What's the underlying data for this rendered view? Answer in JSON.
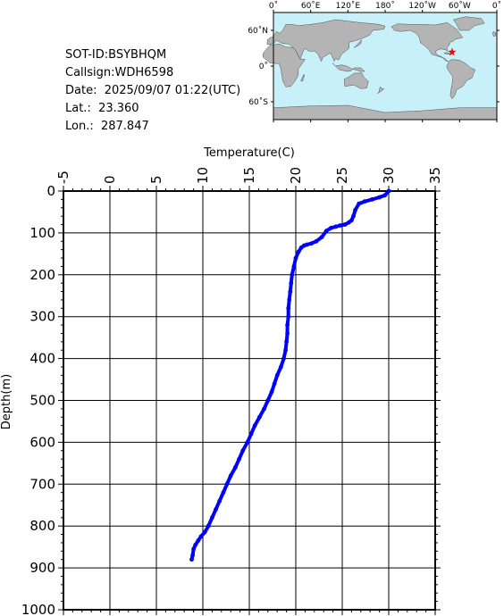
{
  "info": {
    "sot_id": "SOT-ID:BSYBHQM",
    "callsign": "Callsign:WDH6598",
    "date": "Date:  2025/09/07 01:22(UTC)",
    "lat": "Lat.:  23.360",
    "lon": "Lon.:  287.847"
  },
  "map": {
    "lon_labels": [
      "0˚",
      "60˚E",
      "120˚E",
      "180˚",
      "120˚W",
      "60˚W",
      "0˚"
    ],
    "lat_labels": [
      "60˚N",
      "0˚",
      "60˚S"
    ],
    "ocean_color": "#c8f0f8",
    "land_color": "#b4b4b4",
    "marker_color": "#ff0000",
    "marker_lat": 23.36,
    "marker_lon": 287.847
  },
  "chart_data": {
    "type": "line",
    "title": "",
    "xlabel": "Temperature(C)",
    "ylabel": "Depth(m)",
    "xlim": [
      -5,
      35
    ],
    "ylim": [
      0,
      1000
    ],
    "y_inverted": true,
    "x_axis_position": "top",
    "x_ticks": [
      -5,
      0,
      5,
      10,
      15,
      20,
      25,
      30,
      35
    ],
    "y_ticks": [
      0,
      100,
      200,
      300,
      400,
      500,
      600,
      700,
      800,
      900,
      1000
    ],
    "grid": true,
    "series": [
      {
        "color": "#0000ff",
        "x": [
          30.0,
          29.6,
          29.0,
          28.2,
          27.4,
          26.8,
          26.4,
          26.2,
          26.0,
          25.7,
          25.3,
          24.8,
          24.3,
          23.8,
          23.3,
          22.8,
          22.2,
          21.7,
          21.2,
          20.9,
          20.6,
          20.3,
          20.0,
          19.8,
          19.6,
          19.5,
          19.4,
          19.3,
          19.2,
          19.2,
          19.1,
          19.1,
          19.0,
          18.9,
          18.7,
          18.4,
          18.0,
          17.7,
          17.4,
          17.0,
          16.6,
          16.1,
          15.6,
          15.2,
          14.8,
          14.3,
          13.9,
          13.5,
          13.0,
          12.6,
          12.2,
          11.8,
          11.4,
          11.0,
          10.6,
          10.2,
          9.8,
          9.5,
          9.2,
          9.0,
          8.9,
          8.8
        ],
        "y": [
          0,
          10,
          15,
          20,
          25,
          30,
          45,
          60,
          70,
          75,
          80,
          82,
          85,
          88,
          95,
          110,
          120,
          125,
          128,
          130,
          135,
          145,
          160,
          180,
          200,
          220,
          240,
          260,
          280,
          300,
          320,
          340,
          360,
          380,
          400,
          420,
          440,
          460,
          480,
          500,
          520,
          540,
          560,
          580,
          600,
          620,
          640,
          660,
          680,
          700,
          720,
          740,
          760,
          780,
          800,
          815,
          825,
          835,
          845,
          855,
          870,
          880
        ]
      }
    ]
  }
}
